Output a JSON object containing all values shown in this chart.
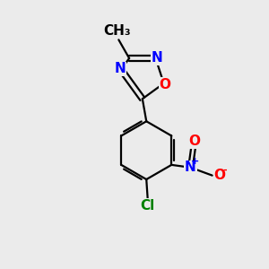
{
  "background_color": "#ebebeb",
  "bond_color": "#000000",
  "bond_width": 1.6,
  "atom_labels": {
    "O_oxadiazole": {
      "text": "O",
      "color": "#ff0000",
      "fontsize": 11,
      "fontweight": "bold"
    },
    "N1_oxadiazole": {
      "text": "N",
      "color": "#0000ff",
      "fontsize": 11,
      "fontweight": "bold"
    },
    "N2_oxadiazole": {
      "text": "N",
      "color": "#0000ff",
      "fontsize": 11,
      "fontweight": "bold"
    },
    "methyl": {
      "text": "CH₃",
      "color": "#000000",
      "fontsize": 11,
      "fontweight": "bold"
    },
    "NO2_N": {
      "text": "N",
      "color": "#0000ff",
      "fontsize": 11,
      "fontweight": "bold"
    },
    "NO2_plus": {
      "text": "+",
      "color": "#0000ff",
      "fontsize": 8,
      "fontweight": "bold"
    },
    "NO2_O1": {
      "text": "O",
      "color": "#ff0000",
      "fontsize": 11,
      "fontweight": "bold"
    },
    "NO2_O1_minus": {
      "text": "-",
      "color": "#ff0000",
      "fontsize": 8,
      "fontweight": "bold"
    },
    "NO2_O2": {
      "text": "O",
      "color": "#ff0000",
      "fontsize": 11,
      "fontweight": "bold"
    },
    "Cl": {
      "text": "Cl",
      "color": "#008000",
      "fontsize": 11,
      "fontweight": "bold"
    }
  }
}
